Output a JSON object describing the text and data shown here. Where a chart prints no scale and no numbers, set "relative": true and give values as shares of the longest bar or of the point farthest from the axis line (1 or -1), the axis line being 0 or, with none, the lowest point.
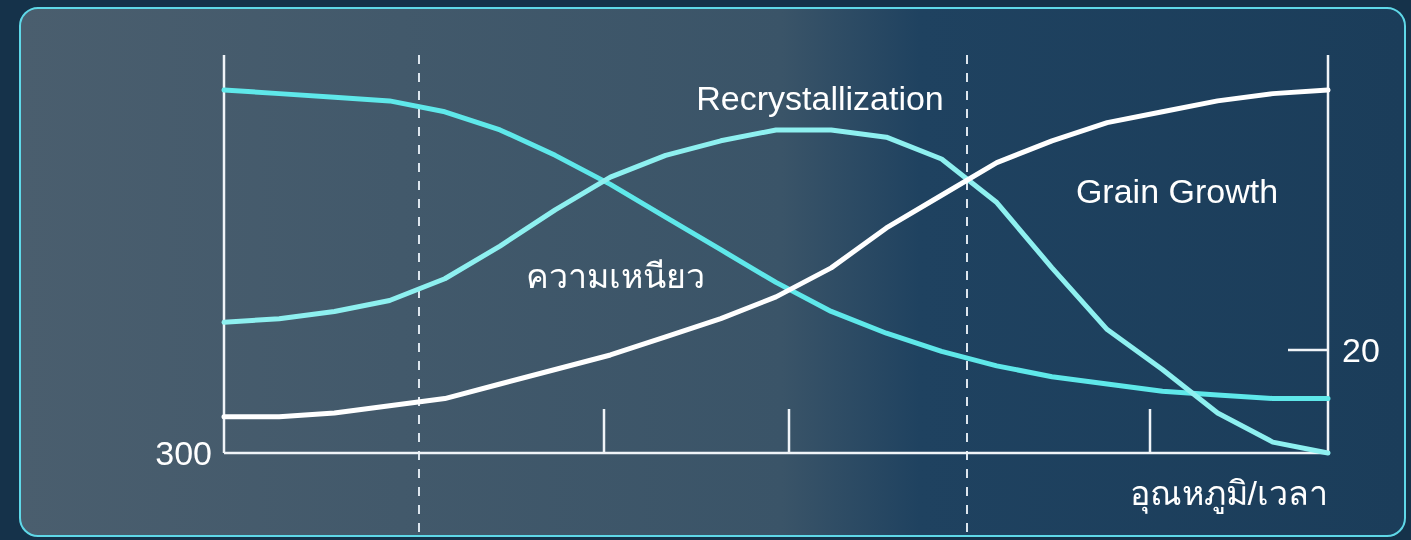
{
  "chart_data": {
    "type": "line",
    "relative": true,
    "xlabel": "อุณหภูมิ/เวลา",
    "categories": [
      null,
      null,
      null,
      null,
      null,
      null,
      null,
      null,
      null,
      null,
      null,
      null,
      null,
      null,
      null,
      null,
      null,
      null,
      null,
      null,
      null
    ],
    "series": [
      {
        "color": "#5fe8ea",
        "values": [
          1.0,
          0.99,
          0.98,
          0.97,
          0.94,
          0.89,
          0.82,
          0.74,
          0.65,
          0.56,
          0.47,
          0.39,
          0.33,
          0.28,
          0.24,
          0.21,
          0.19,
          0.17,
          0.16,
          0.15,
          0.15
        ]
      },
      {
        "color": "#8ef0f0",
        "values": [
          0.36,
          0.37,
          0.39,
          0.42,
          0.48,
          0.57,
          0.67,
          0.76,
          0.82,
          0.86,
          0.89,
          0.89,
          0.87,
          0.81,
          0.69,
          0.51,
          0.34,
          0.23,
          0.11,
          0.03,
          0
        ]
      },
      {
        "color": "#ffffff",
        "values": [
          0.1,
          0.1,
          0.11,
          0.13,
          0.15,
          0.19,
          0.23,
          0.27,
          0.32,
          0.37,
          0.43,
          0.51,
          0.62,
          0.71,
          0.8,
          0.86,
          0.91,
          0.94,
          0.97,
          0.99,
          1.0
        ]
      }
    ],
    "annotations": [
      "Recrystallization",
      "Grain Growth",
      "ความเหนียว",
      "300",
      "20"
    ]
  }
}
